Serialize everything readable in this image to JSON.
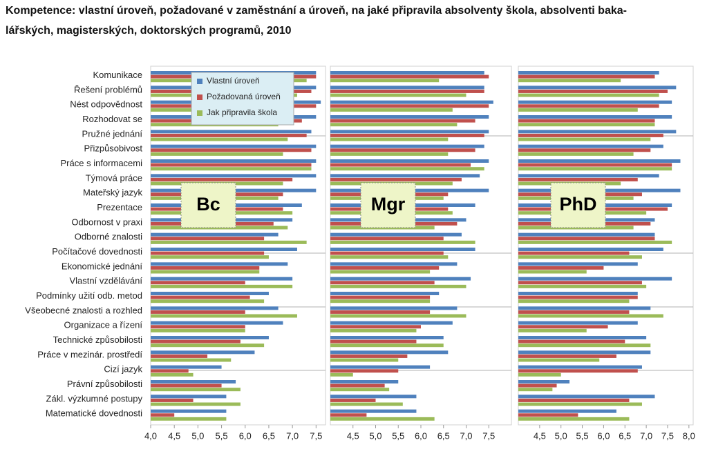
{
  "title": [
    "Kompetence: vlastní úroveň, požadované v zaměstnání a úroveň, na jaké připravila absolventy škola, absolventi baka-",
    "lářských, magisterských, doktorských programů, 2010"
  ],
  "chart_data": [
    {
      "type": "bar",
      "orientation": "horizontal",
      "label": "Bc",
      "categories": [
        "Komunikace",
        "Řešení problémů",
        "Nést odpovědnost",
        "Rozhodovat se",
        "Pružné jednání",
        "Přizpůsobivost",
        "Práce s informacemi",
        "Týmová práce",
        "Mateřský jazyk",
        "Prezentace",
        "Odbornost v praxi",
        "Odborné znalosti",
        "Počítačové dovednosti",
        "Ekonomické jednání",
        "Vlastní vzdělávání",
        "Podmínky užití odb. metod",
        "Všeobecné znalosti a rozhled",
        "Organizace a řízení",
        "Technické způsobilosti",
        "Práce v mezinár. prostředí",
        "Cizí jazyk",
        "Právní způsobilosti",
        "Zákl. výzkumné postupy",
        "Matematické dovednosti"
      ],
      "series": [
        {
          "name": "Vlastní úroveň",
          "color": "#4f81bd",
          "values": [
            7.5,
            7.5,
            7.6,
            7.5,
            7.4,
            7.5,
            7.5,
            7.5,
            7.5,
            7.2,
            7.0,
            6.7,
            7.1,
            6.9,
            7.0,
            6.5,
            6.7,
            6.8,
            6.5,
            6.2,
            5.5,
            5.8,
            5.6,
            5.6
          ]
        },
        {
          "name": "Požadovaná úroveň",
          "color": "#c0504d",
          "values": [
            7.5,
            7.4,
            7.5,
            7.2,
            7.3,
            7.4,
            7.4,
            7.0,
            6.8,
            6.8,
            6.6,
            6.4,
            6.4,
            6.3,
            6.0,
            6.1,
            6.0,
            6.0,
            5.9,
            5.2,
            4.8,
            5.5,
            4.9,
            4.5
          ]
        },
        {
          "name": "Jak připravila škola",
          "color": "#9bbb59",
          "values": [
            7.3,
            7.1,
            6.9,
            6.7,
            6.9,
            6.8,
            7.4,
            6.8,
            6.7,
            7.0,
            6.9,
            7.3,
            6.5,
            6.3,
            7.0,
            6.4,
            7.1,
            6.0,
            6.4,
            5.7,
            4.9,
            5.9,
            5.9,
            5.6
          ]
        }
      ],
      "xlim": [
        4.0,
        7.7
      ],
      "xticks": [
        {
          "value": 4.0,
          "label": "4,0"
        },
        {
          "value": 4.5,
          "label": "4,5"
        },
        {
          "value": 5.0,
          "label": "5,0"
        },
        {
          "value": 5.5,
          "label": "5,5"
        },
        {
          "value": 6.0,
          "label": "6,0"
        },
        {
          "value": 6.5,
          "label": "6,5"
        },
        {
          "value": 7.0,
          "label": "7,0"
        },
        {
          "value": 7.5,
          "label": "7,5"
        }
      ]
    },
    {
      "type": "bar",
      "orientation": "horizontal",
      "label": "Mgr",
      "series": [
        {
          "color": "#4f81bd",
          "values": [
            7.4,
            7.4,
            7.6,
            7.5,
            7.5,
            7.4,
            7.5,
            7.3,
            7.5,
            7.2,
            7.0,
            6.9,
            7.2,
            6.8,
            7.1,
            6.4,
            6.8,
            6.7,
            6.5,
            6.6,
            6.2,
            5.5,
            5.9,
            5.9
          ]
        },
        {
          "color": "#c0504d",
          "values": [
            7.5,
            7.4,
            7.5,
            7.2,
            7.4,
            7.2,
            7.1,
            6.9,
            6.6,
            6.6,
            6.8,
            6.5,
            6.5,
            6.4,
            6.3,
            6.2,
            6.2,
            6.0,
            5.9,
            5.7,
            5.5,
            5.2,
            5.0,
            4.8
          ]
        },
        {
          "color": "#9bbb59",
          "values": [
            6.4,
            7.0,
            6.7,
            6.8,
            6.6,
            6.6,
            7.4,
            6.7,
            6.5,
            6.7,
            6.3,
            7.2,
            6.6,
            6.2,
            7.0,
            6.2,
            7.0,
            5.9,
            6.5,
            5.5,
            4.5,
            5.3,
            5.6,
            6.3
          ]
        }
      ],
      "xlim": [
        4.0,
        8.0
      ],
      "xticks": [
        {
          "value": 4.5,
          "label": "4,5"
        },
        {
          "value": 5.0,
          "label": "5,0"
        },
        {
          "value": 5.5,
          "label": "5,5"
        },
        {
          "value": 6.0,
          "label": "6,0"
        },
        {
          "value": 6.5,
          "label": "6,5"
        },
        {
          "value": 7.0,
          "label": "7,0"
        },
        {
          "value": 7.5,
          "label": "7,5"
        }
      ]
    },
    {
      "type": "bar",
      "orientation": "horizontal",
      "label": "PhD",
      "series": [
        {
          "color": "#4f81bd",
          "values": [
            7.3,
            7.7,
            7.6,
            7.6,
            7.7,
            7.4,
            7.8,
            7.3,
            7.8,
            7.6,
            7.2,
            7.2,
            7.4,
            6.8,
            7.6,
            6.8,
            7.1,
            6.8,
            7.0,
            7.1,
            6.9,
            5.2,
            7.2,
            6.3
          ]
        },
        {
          "color": "#c0504d",
          "values": [
            7.2,
            7.5,
            7.3,
            7.2,
            7.4,
            7.1,
            7.6,
            6.8,
            6.9,
            7.5,
            7.1,
            7.2,
            6.6,
            6.0,
            6.9,
            6.8,
            6.6,
            6.1,
            6.5,
            6.3,
            6.8,
            4.9,
            6.6,
            5.4
          ]
        },
        {
          "color": "#9bbb59",
          "values": [
            6.4,
            7.3,
            6.8,
            7.2,
            7.1,
            6.7,
            7.6,
            6.4,
            6.7,
            7.0,
            6.7,
            7.6,
            6.9,
            5.6,
            7.0,
            6.6,
            7.4,
            5.6,
            7.1,
            5.9,
            5.0,
            4.8,
            6.9,
            6.6
          ]
        }
      ],
      "xlim": [
        4.0,
        8.1
      ],
      "xticks": [
        {
          "value": 4.5,
          "label": "4,5"
        },
        {
          "value": 5.0,
          "label": "5,0"
        },
        {
          "value": 5.5,
          "label": "5,5"
        },
        {
          "value": 6.0,
          "label": "6,0"
        },
        {
          "value": 6.5,
          "label": "6,5"
        },
        {
          "value": 7.0,
          "label": "7,0"
        },
        {
          "value": 7.5,
          "label": "7,5"
        },
        {
          "value": 8.0,
          "label": "8,0"
        }
      ]
    }
  ]
}
